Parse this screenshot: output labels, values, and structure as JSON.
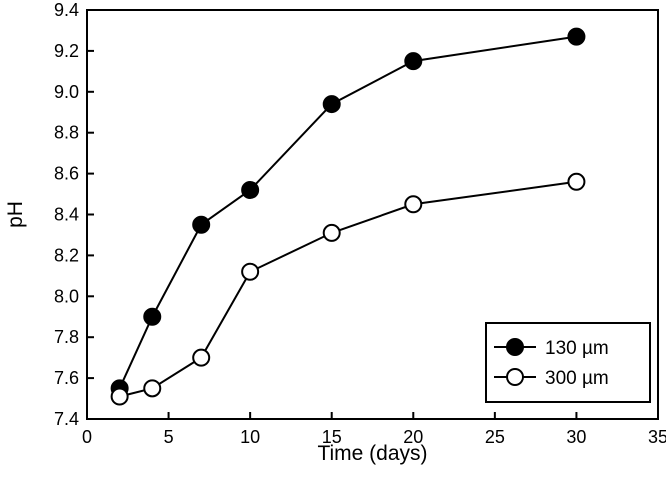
{
  "chart_data": {
    "type": "line",
    "title": "",
    "xlabel": "Time (days)",
    "ylabel": "pH",
    "xlim": [
      0,
      35
    ],
    "ylim": [
      7.4,
      9.4
    ],
    "xticks": [
      0,
      5,
      10,
      15,
      20,
      25,
      30,
      35
    ],
    "yticks": [
      7.4,
      7.6,
      7.8,
      8.0,
      8.2,
      8.4,
      8.6,
      8.8,
      9.0,
      9.2,
      9.4
    ],
    "xtick_labels": [
      "0",
      "5",
      "10",
      "15",
      "20",
      "25",
      "30",
      "35"
    ],
    "ytick_labels": [
      "7.4",
      "7.6",
      "7.8",
      "8.0",
      "8.2",
      "8.4",
      "8.6",
      "8.8",
      "9.0",
      "9.2",
      "9.4"
    ],
    "grid": false,
    "legend_position": "bottom-right",
    "series": [
      {
        "name": "130 µm",
        "marker": "filled-circle",
        "color": "#000000",
        "x": [
          2,
          4,
          7,
          10,
          15,
          20,
          30
        ],
        "y": [
          7.55,
          7.9,
          8.35,
          8.52,
          8.94,
          9.15,
          9.27
        ]
      },
      {
        "name": "300 µm",
        "marker": "open-circle",
        "color": "#000000",
        "x": [
          2,
          4,
          7,
          10,
          15,
          20,
          30
        ],
        "y": [
          7.51,
          7.55,
          7.7,
          8.12,
          8.31,
          8.45,
          8.56
        ]
      }
    ]
  }
}
